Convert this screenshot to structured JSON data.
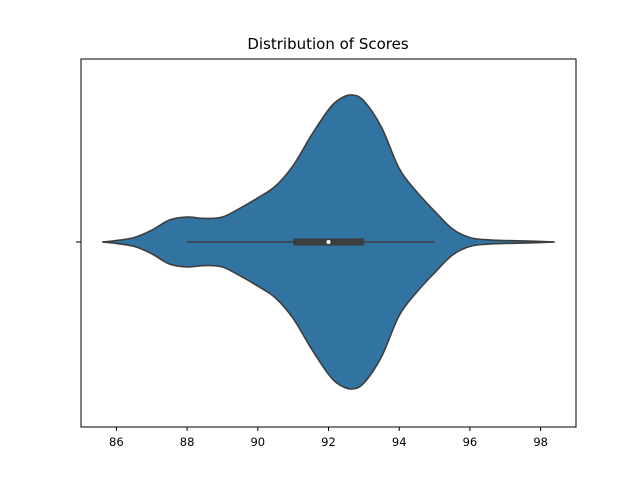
{
  "chart_data": {
    "type": "violin",
    "orientation": "horizontal",
    "title": "Distribution of Scores",
    "xlabel": "",
    "ylabel": "",
    "xlim": [
      85.0,
      99.0
    ],
    "xticks": [
      86,
      88,
      90,
      92,
      94,
      96,
      98
    ],
    "grid": false,
    "legend": "none",
    "violin": {
      "color": "#3274a1",
      "edge_color": "#3d3d3d",
      "extent": [
        85.6,
        98.4
      ],
      "density_profile": [
        [
          85.6,
          0.0
        ],
        [
          86.0,
          0.01
        ],
        [
          86.5,
          0.03
        ],
        [
          87.0,
          0.08
        ],
        [
          87.5,
          0.15
        ],
        [
          88.0,
          0.17
        ],
        [
          88.5,
          0.16
        ],
        [
          89.0,
          0.17
        ],
        [
          89.5,
          0.23
        ],
        [
          90.0,
          0.3
        ],
        [
          90.5,
          0.38
        ],
        [
          91.0,
          0.52
        ],
        [
          91.5,
          0.72
        ],
        [
          92.0,
          0.9
        ],
        [
          92.3,
          0.97
        ],
        [
          92.65,
          1.0
        ],
        [
          93.0,
          0.96
        ],
        [
          93.5,
          0.78
        ],
        [
          94.0,
          0.5
        ],
        [
          94.5,
          0.34
        ],
        [
          95.0,
          0.21
        ],
        [
          95.5,
          0.09
        ],
        [
          96.0,
          0.03
        ],
        [
          96.5,
          0.015
        ],
        [
          97.0,
          0.01
        ],
        [
          97.5,
          0.007
        ],
        [
          98.0,
          0.004
        ],
        [
          98.4,
          0.0
        ]
      ],
      "box": {
        "whisker_low": 88.0,
        "q1": 91.0,
        "median": 92.0,
        "q3": 93.0,
        "whisker_high": 95.0
      }
    }
  }
}
